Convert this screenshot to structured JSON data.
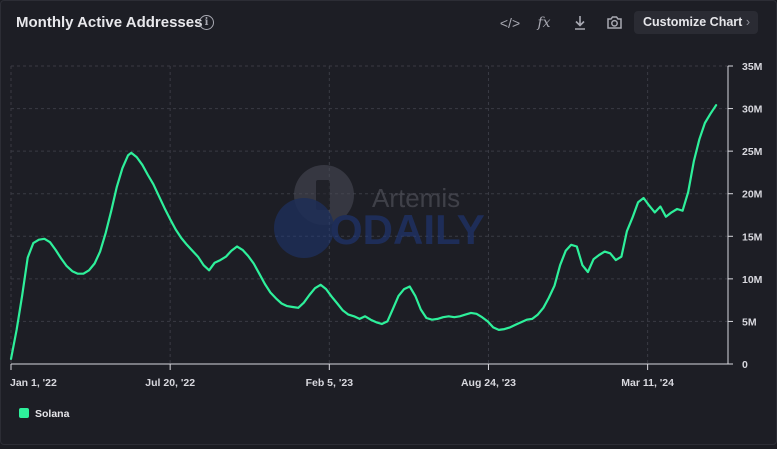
{
  "header": {
    "title": "Monthly Active Addresses",
    "tools": [
      {
        "name": "embed-icon",
        "glyph": "</>"
      },
      {
        "name": "formula-icon",
        "glyph": "fx"
      },
      {
        "name": "download-icon",
        "glyph": "⤓"
      },
      {
        "name": "camera-icon",
        "glyph": "📷"
      }
    ],
    "customize_label": "Customize Chart",
    "customize_chevron": "›"
  },
  "watermark": {
    "brand1": "Artemis",
    "brand2": "ODAILY"
  },
  "colors": {
    "series": "#2ef09b",
    "grid": "#3a3b44",
    "axis": "#d8d8de"
  },
  "chart_data": {
    "type": "line",
    "title": "Monthly Active Addresses",
    "x_ticks": [
      "Jan 1, '22",
      "Jul 20, '22",
      "Feb 5, '23",
      "Aug 24, '23",
      "Mar 11, '24"
    ],
    "x_tick_dates": [
      "2022-01-01",
      "2022-07-20",
      "2023-02-05",
      "2023-08-24",
      "2024-03-11"
    ],
    "x_range": [
      "2022-01-01",
      "2024-06-20"
    ],
    "y_ticks": [
      "0",
      "5M",
      "10M",
      "15M",
      "20M",
      "25M",
      "30M",
      "35M"
    ],
    "ylim": [
      0,
      35000000
    ],
    "y_axis_side": "right",
    "grid": true,
    "legend_position": "bottom-left",
    "series": [
      {
        "name": "Solana",
        "color": "#2ef09b",
        "points": [
          [
            "2022-01-01",
            0.6
          ],
          [
            "2022-01-08",
            4.0
          ],
          [
            "2022-01-15",
            8.0
          ],
          [
            "2022-01-22",
            12.5
          ],
          [
            "2022-01-29",
            14.2
          ],
          [
            "2022-02-05",
            14.6
          ],
          [
            "2022-02-12",
            14.7
          ],
          [
            "2022-02-19",
            14.3
          ],
          [
            "2022-02-26",
            13.4
          ],
          [
            "2022-03-05",
            12.4
          ],
          [
            "2022-03-12",
            11.5
          ],
          [
            "2022-03-19",
            10.9
          ],
          [
            "2022-03-26",
            10.6
          ],
          [
            "2022-04-02",
            10.6
          ],
          [
            "2022-04-09",
            11.0
          ],
          [
            "2022-04-16",
            11.8
          ],
          [
            "2022-04-23",
            13.2
          ],
          [
            "2022-04-30",
            15.4
          ],
          [
            "2022-05-07",
            18.0
          ],
          [
            "2022-05-14",
            20.8
          ],
          [
            "2022-05-21",
            23.0
          ],
          [
            "2022-05-28",
            24.5
          ],
          [
            "2022-06-01",
            24.8
          ],
          [
            "2022-06-08",
            24.3
          ],
          [
            "2022-06-15",
            23.4
          ],
          [
            "2022-06-22",
            22.2
          ],
          [
            "2022-06-29",
            21.1
          ],
          [
            "2022-07-06",
            19.7
          ],
          [
            "2022-07-13",
            18.3
          ],
          [
            "2022-07-20",
            17.0
          ],
          [
            "2022-07-27",
            15.8
          ],
          [
            "2022-08-03",
            14.8
          ],
          [
            "2022-08-10",
            14.0
          ],
          [
            "2022-08-17",
            13.3
          ],
          [
            "2022-08-24",
            12.6
          ],
          [
            "2022-08-31",
            11.6
          ],
          [
            "2022-09-07",
            11.0
          ],
          [
            "2022-09-14",
            11.9
          ],
          [
            "2022-09-21",
            12.2
          ],
          [
            "2022-09-28",
            12.6
          ],
          [
            "2022-10-05",
            13.3
          ],
          [
            "2022-10-12",
            13.8
          ],
          [
            "2022-10-19",
            13.4
          ],
          [
            "2022-10-26",
            12.7
          ],
          [
            "2022-11-02",
            11.8
          ],
          [
            "2022-11-09",
            10.6
          ],
          [
            "2022-11-16",
            9.4
          ],
          [
            "2022-11-23",
            8.4
          ],
          [
            "2022-11-30",
            7.7
          ],
          [
            "2022-12-07",
            7.1
          ],
          [
            "2022-12-14",
            6.8
          ],
          [
            "2022-12-21",
            6.7
          ],
          [
            "2022-12-28",
            6.6
          ],
          [
            "2023-01-04",
            7.2
          ],
          [
            "2023-01-11",
            8.1
          ],
          [
            "2023-01-18",
            8.9
          ],
          [
            "2023-01-25",
            9.3
          ],
          [
            "2023-02-01",
            8.8
          ],
          [
            "2023-02-08",
            7.9
          ],
          [
            "2023-02-15",
            7.1
          ],
          [
            "2023-02-22",
            6.3
          ],
          [
            "2023-03-01",
            5.8
          ],
          [
            "2023-03-08",
            5.6
          ],
          [
            "2023-03-15",
            5.3
          ],
          [
            "2023-03-22",
            5.6
          ],
          [
            "2023-03-29",
            5.2
          ],
          [
            "2023-04-05",
            4.9
          ],
          [
            "2023-04-12",
            4.7
          ],
          [
            "2023-04-19",
            5.0
          ],
          [
            "2023-04-26",
            6.5
          ],
          [
            "2023-05-03",
            8.0
          ],
          [
            "2023-05-10",
            8.8
          ],
          [
            "2023-05-17",
            9.1
          ],
          [
            "2023-05-24",
            8.0
          ],
          [
            "2023-05-31",
            6.4
          ],
          [
            "2023-06-07",
            5.4
          ],
          [
            "2023-06-14",
            5.2
          ],
          [
            "2023-06-21",
            5.3
          ],
          [
            "2023-06-28",
            5.5
          ],
          [
            "2023-07-05",
            5.6
          ],
          [
            "2023-07-12",
            5.5
          ],
          [
            "2023-07-19",
            5.6
          ],
          [
            "2023-07-26",
            5.8
          ],
          [
            "2023-08-02",
            6.0
          ],
          [
            "2023-08-09",
            5.9
          ],
          [
            "2023-08-16",
            5.5
          ],
          [
            "2023-08-23",
            5.0
          ],
          [
            "2023-08-30",
            4.3
          ],
          [
            "2023-09-06",
            4.0
          ],
          [
            "2023-09-13",
            4.1
          ],
          [
            "2023-09-20",
            4.3
          ],
          [
            "2023-09-27",
            4.6
          ],
          [
            "2023-10-04",
            4.9
          ],
          [
            "2023-10-11",
            5.2
          ],
          [
            "2023-10-18",
            5.3
          ],
          [
            "2023-10-25",
            5.8
          ],
          [
            "2023-11-01",
            6.6
          ],
          [
            "2023-11-08",
            7.8
          ],
          [
            "2023-11-15",
            9.2
          ],
          [
            "2023-11-22",
            11.6
          ],
          [
            "2023-11-29",
            13.3
          ],
          [
            "2023-12-06",
            14.0
          ],
          [
            "2023-12-13",
            13.8
          ],
          [
            "2023-12-20",
            11.6
          ],
          [
            "2023-12-27",
            10.8
          ],
          [
            "2024-01-03",
            12.3
          ],
          [
            "2024-01-10",
            12.8
          ],
          [
            "2024-01-17",
            13.2
          ],
          [
            "2024-01-24",
            13.0
          ],
          [
            "2024-01-31",
            12.2
          ],
          [
            "2024-02-07",
            12.6
          ],
          [
            "2024-02-14",
            15.6
          ],
          [
            "2024-02-21",
            17.2
          ],
          [
            "2024-02-28",
            19.0
          ],
          [
            "2024-03-06",
            19.5
          ],
          [
            "2024-03-13",
            18.6
          ],
          [
            "2024-03-20",
            17.8
          ],
          [
            "2024-03-27",
            18.5
          ],
          [
            "2024-04-03",
            17.3
          ],
          [
            "2024-04-10",
            17.8
          ],
          [
            "2024-04-17",
            18.2
          ],
          [
            "2024-04-24",
            18.0
          ],
          [
            "2024-05-01",
            20.2
          ],
          [
            "2024-05-08",
            23.8
          ],
          [
            "2024-05-15",
            26.4
          ],
          [
            "2024-05-22",
            28.3
          ],
          [
            "2024-05-29",
            29.4
          ],
          [
            "2024-06-05",
            30.4
          ]
        ],
        "unit": "M"
      }
    ]
  },
  "legend": {
    "label": "Solana"
  }
}
